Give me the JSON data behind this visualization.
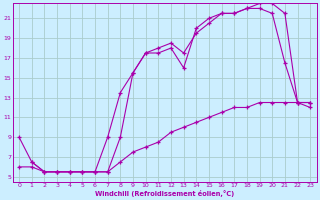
{
  "background_color": "#cceeff",
  "grid_color": "#aacccc",
  "line_color": "#aa00aa",
  "xlim": [
    -0.5,
    23.5
  ],
  "ylim": [
    4.5,
    22.5
  ],
  "xticks": [
    0,
    1,
    2,
    3,
    4,
    5,
    6,
    7,
    8,
    9,
    10,
    11,
    12,
    13,
    14,
    15,
    16,
    17,
    18,
    19,
    20,
    21,
    22,
    23
  ],
  "yticks": [
    5,
    7,
    9,
    11,
    13,
    15,
    17,
    19,
    21
  ],
  "xlabel": "Windchill (Refroidissement éolien,°C)",
  "curve1_x": [
    0,
    1,
    2,
    3,
    4,
    5,
    6,
    7,
    8,
    9,
    10,
    11,
    12,
    13,
    14,
    15,
    16,
    17,
    18,
    19,
    20,
    21,
    22,
    23
  ],
  "curve1_y": [
    9.0,
    6.5,
    5.5,
    5.5,
    5.5,
    5.5,
    5.5,
    9.0,
    13.5,
    15.5,
    17.5,
    17.5,
    18.0,
    16.0,
    20.0,
    21.0,
    21.5,
    21.5,
    22.0,
    22.0,
    21.5,
    16.5,
    12.5,
    12.5
  ],
  "curve2_x": [
    1,
    2,
    3,
    4,
    5,
    6,
    7,
    8,
    9,
    10,
    11,
    12,
    13,
    14,
    15,
    16,
    17,
    18,
    19,
    20,
    21,
    22,
    23
  ],
  "curve2_y": [
    6.5,
    5.5,
    5.5,
    5.5,
    5.5,
    5.5,
    5.5,
    9.0,
    15.5,
    17.5,
    18.0,
    18.5,
    17.5,
    19.5,
    20.5,
    21.5,
    21.5,
    22.0,
    22.5,
    22.5,
    21.5,
    12.5,
    12.0
  ],
  "curve3_x": [
    0,
    1,
    2,
    3,
    4,
    5,
    6,
    7,
    8,
    9,
    10,
    11,
    12,
    13,
    14,
    15,
    16,
    17,
    18,
    19,
    20,
    21,
    22,
    23
  ],
  "curve3_y": [
    6.0,
    6.0,
    5.5,
    5.5,
    5.5,
    5.5,
    5.5,
    5.5,
    6.5,
    7.5,
    8.0,
    8.5,
    9.5,
    10.0,
    10.5,
    11.0,
    11.5,
    12.0,
    12.0,
    12.5,
    12.5,
    12.5,
    12.5,
    12.5
  ]
}
